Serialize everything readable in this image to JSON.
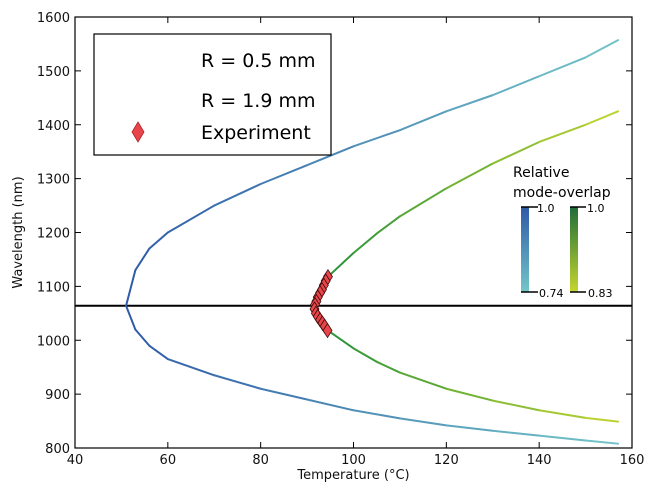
{
  "chart_data": {
    "type": "line",
    "title": "",
    "xlabel": "Temperature (°C)",
    "ylabel": "Wavelength (nm)",
    "xlim": [
      40,
      160
    ],
    "ylim": [
      800,
      1600
    ],
    "xticks": [
      40,
      60,
      80,
      100,
      120,
      140,
      160
    ],
    "yticks": [
      800,
      900,
      1000,
      1100,
      1200,
      1300,
      1400,
      1500,
      1600
    ],
    "grid": false,
    "legend_position": "top-left",
    "reference_line": {
      "y": 1064,
      "color": "#000000"
    },
    "series": [
      {
        "name": "R = 0.5 mm",
        "kind": "line",
        "vertex": {
          "x": 51,
          "y": 1064
        },
        "upper": [
          [
            51,
            1064
          ],
          [
            53,
            1130
          ],
          [
            56,
            1170
          ],
          [
            60,
            1200
          ],
          [
            70,
            1250
          ],
          [
            80,
            1290
          ],
          [
            90,
            1325
          ],
          [
            100,
            1360
          ],
          [
            110,
            1390
          ],
          [
            120,
            1425
          ],
          [
            130,
            1455
          ],
          [
            140,
            1490
          ],
          [
            150,
            1525
          ],
          [
            157,
            1557
          ]
        ],
        "lower": [
          [
            51,
            1064
          ],
          [
            53,
            1020
          ],
          [
            56,
            990
          ],
          [
            60,
            965
          ],
          [
            70,
            935
          ],
          [
            80,
            910
          ],
          [
            90,
            890
          ],
          [
            100,
            870
          ],
          [
            110,
            855
          ],
          [
            120,
            842
          ],
          [
            130,
            832
          ],
          [
            140,
            823
          ],
          [
            150,
            814
          ],
          [
            157,
            808
          ]
        ],
        "color_start": "#2f5aa8",
        "color_end": "#73c6c8"
      },
      {
        "name": "R = 1.9 mm",
        "kind": "line",
        "vertex": {
          "x": 91.5,
          "y": 1064
        },
        "upper": [
          [
            94.5,
            1118
          ],
          [
            100,
            1162
          ],
          [
            105,
            1198
          ],
          [
            110,
            1230
          ],
          [
            120,
            1282
          ],
          [
            130,
            1328
          ],
          [
            140,
            1368
          ],
          [
            150,
            1400
          ],
          [
            157,
            1425
          ]
        ],
        "lower": [
          [
            94.5,
            1018
          ],
          [
            100,
            985
          ],
          [
            105,
            960
          ],
          [
            110,
            940
          ],
          [
            120,
            910
          ],
          [
            130,
            888
          ],
          [
            140,
            870
          ],
          [
            150,
            856
          ],
          [
            157,
            849
          ]
        ],
        "color_start": "#1e8f3a",
        "color_end": "#c5d62f"
      },
      {
        "name": "Experiment",
        "kind": "scatter",
        "marker": "diamond",
        "color": "#e8454a",
        "points": [
          [
            94.5,
            1118
          ],
          [
            94,
            1110
          ],
          [
            93.6,
            1102
          ],
          [
            93.2,
            1094
          ],
          [
            92.8,
            1088
          ],
          [
            92.3,
            1080
          ],
          [
            92.0,
            1072
          ],
          [
            91.7,
            1066
          ],
          [
            91.6,
            1058
          ],
          [
            91.9,
            1050
          ],
          [
            92.3,
            1044
          ],
          [
            92.8,
            1038
          ],
          [
            93.3,
            1032
          ],
          [
            93.8,
            1026
          ],
          [
            94.4,
            1018
          ]
        ]
      }
    ],
    "colorbars": {
      "title_line1": "Relative",
      "title_line2": "mode-overlap",
      "bars": [
        {
          "series": "R = 0.5 mm",
          "top_label": "1.0",
          "bottom_label": "0.74",
          "color_top": "#2f5aa8",
          "color_bottom": "#73c6c8"
        },
        {
          "series": "R = 1.9 mm",
          "top_label": "1.0",
          "bottom_label": "0.83",
          "color_top": "#1f6d3a",
          "color_bottom": "#c5d62f"
        }
      ]
    }
  }
}
